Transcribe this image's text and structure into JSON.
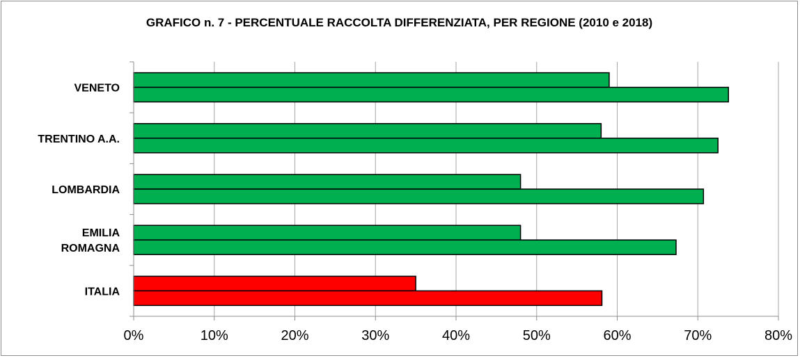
{
  "chart_data": {
    "type": "bar",
    "orientation": "horizontal",
    "title": "GRAFICO n.  7 - PERCENTUALE RACCOLTA DIFFERENZIATA, PER REGIONE (2010 e 2018)",
    "categories": [
      [
        "VENETO"
      ],
      [
        "TRENTINO A.A."
      ],
      [
        "LOMBARDIA"
      ],
      [
        "EMILIA",
        "ROMAGNA"
      ],
      [
        "ITALIA"
      ]
    ],
    "series": [
      {
        "values": [
          59,
          58,
          48,
          48,
          35
        ]
      },
      {
        "values": [
          73.8,
          72.5,
          70.7,
          67.3,
          58.1
        ]
      }
    ],
    "bar_colors": [
      "#00b050",
      "#00b050",
      "#00b050",
      "#00b050",
      "#ff0000"
    ],
    "xlim": [
      0,
      80
    ],
    "xticks": [
      "0%",
      "10%",
      "20%",
      "30%",
      "40%",
      "50%",
      "60%",
      "70%",
      "80%"
    ],
    "grid": true,
    "legend": "none"
  }
}
